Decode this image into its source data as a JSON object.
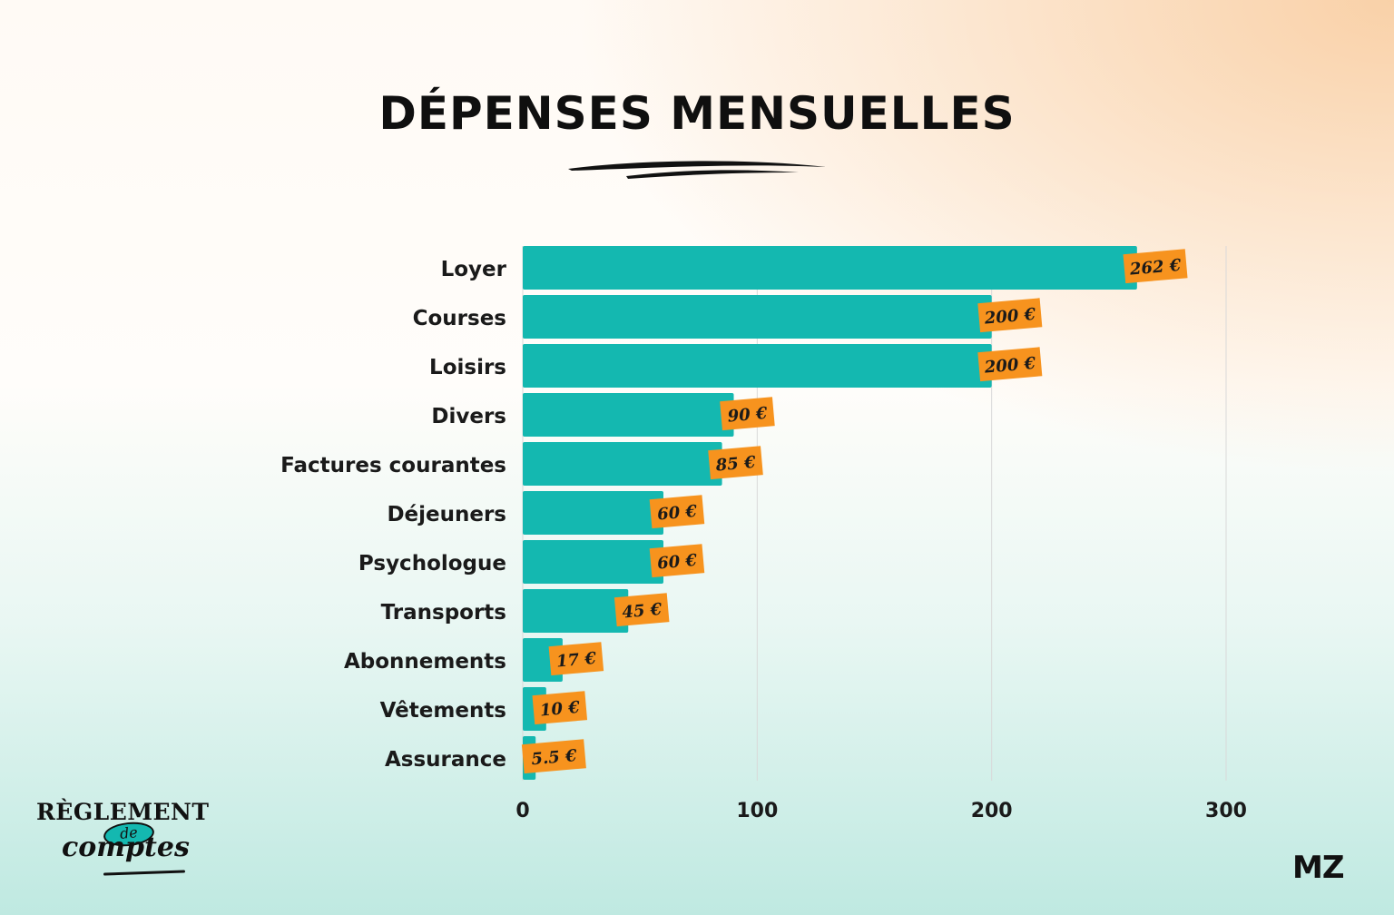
{
  "title": "DÉPENSES MENSUELLES",
  "logos": {
    "left_line1": "RÈGLEMENT",
    "left_line2": "de",
    "left_line3": "comptes",
    "right": "MZ"
  },
  "colors": {
    "bar": "#14b8b0",
    "label_bg": "#f7931e",
    "grid": "#d9d9d9",
    "text": "#1a1a1a"
  },
  "chart_data": {
    "type": "bar",
    "orientation": "horizontal",
    "title": "DÉPENSES MENSUELLES",
    "categories": [
      "Loyer",
      "Courses",
      "Loisirs",
      "Divers",
      "Factures courantes",
      "Déjeuners",
      "Psychologue",
      "Transports",
      "Abonnements",
      "Vêtements",
      "Assurance"
    ],
    "values": [
      262,
      200,
      200,
      90,
      85,
      60,
      60,
      45,
      17,
      10,
      5.5
    ],
    "value_labels": [
      "262 €",
      "200 €",
      "200 €",
      "90 €",
      "85 €",
      "60 €",
      "60 €",
      "45 €",
      "17 €",
      "10 €",
      "5.5 €"
    ],
    "xlim": [
      0,
      300
    ],
    "xticks": [
      0,
      100,
      200,
      300
    ],
    "xtick_labels": [
      "0",
      "100",
      "200",
      "300"
    ],
    "xlabel": "",
    "ylabel": "",
    "grid": true,
    "legend": "none"
  }
}
